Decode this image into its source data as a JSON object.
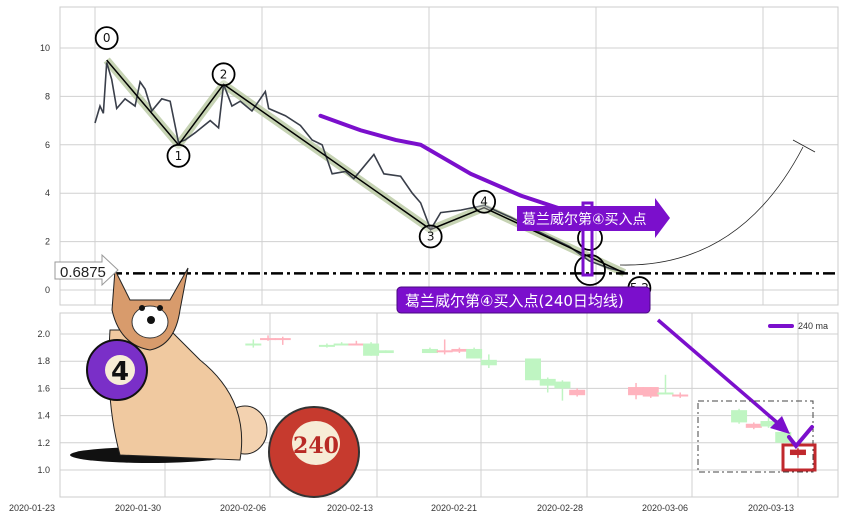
{
  "chart_data": [
    {
      "type": "line",
      "panel": "top",
      "grid": true,
      "ylim": [
        -0.6,
        11.7
      ],
      "yticks": [
        "0",
        "2",
        "4",
        "6",
        "8",
        "10"
      ],
      "xlim": [
        -21,
        445
      ],
      "price_series": [
        [
          0,
          6.9
        ],
        [
          3,
          7.6
        ],
        [
          5,
          7.3
        ],
        [
          7,
          9.4
        ],
        [
          10,
          8.7
        ],
        [
          13,
          7.5
        ],
        [
          18,
          7.9
        ],
        [
          24,
          7.6
        ],
        [
          27,
          8.6
        ],
        [
          30,
          8.3
        ],
        [
          34,
          7.4
        ],
        [
          40,
          7.9
        ],
        [
          45,
          7.8
        ],
        [
          50,
          6.1
        ],
        [
          54,
          6.2
        ],
        [
          60,
          6.5
        ],
        [
          69,
          7.0
        ],
        [
          74,
          6.7
        ],
        [
          77,
          8.5
        ],
        [
          82,
          7.6
        ],
        [
          87,
          7.8
        ],
        [
          94,
          7.4
        ],
        [
          102,
          8.2
        ],
        [
          104,
          7.5
        ],
        [
          114,
          7.2
        ],
        [
          123,
          6.8
        ],
        [
          130,
          6.2
        ],
        [
          136,
          6.0
        ],
        [
          142,
          4.8
        ],
        [
          150,
          4.9
        ],
        [
          155,
          4.6
        ],
        [
          167,
          5.6
        ],
        [
          173,
          4.8
        ],
        [
          183,
          4.7
        ],
        [
          190,
          4.0
        ],
        [
          195,
          3.6
        ],
        [
          201,
          2.5
        ],
        [
          207,
          3.2
        ],
        [
          219,
          3.3
        ],
        [
          233,
          3.5
        ],
        [
          249,
          3.0
        ],
        [
          266,
          2.4
        ],
        [
          284,
          1.8
        ],
        [
          296,
          1.2
        ],
        [
          308,
          0.9
        ],
        [
          317,
          0.75
        ]
      ],
      "ma240_series": [
        [
          135,
          7.2
        ],
        [
          159,
          6.6
        ],
        [
          180,
          6.2
        ],
        [
          195,
          6.0
        ],
        [
          210,
          5.4
        ],
        [
          225,
          4.8
        ],
        [
          255,
          3.9
        ],
        [
          290,
          3.1
        ],
        [
          302,
          2.7
        ]
      ],
      "waves": [
        {
          "label": "0",
          "x": 7,
          "y": 9.5
        },
        {
          "label": "1",
          "x": 50,
          "y": 6.0
        },
        {
          "label": "2",
          "x": 77,
          "y": 8.5
        },
        {
          "label": "3",
          "x": 201,
          "y": 2.5
        },
        {
          "label": "4",
          "x": 233,
          "y": 3.4
        },
        {
          "label": "5.2",
          "x": 317,
          "y": 0.7
        }
      ],
      "hline": {
        "value": 0.6875,
        "label": "0.6875",
        "style": "dash-dot"
      },
      "annotations": {
        "arrow_label": "葛兰威尔第④买入点",
        "box_label": "葛兰威尔第④买入点(240日均线)"
      },
      "colors": {
        "price": "#3a3f4a",
        "wave_band": "#b8c8a0",
        "ma240": "#7b0fcc",
        "annotation": "#7b0fcc"
      }
    },
    {
      "type": "candlestick",
      "panel": "bottom",
      "grid": true,
      "ylim": [
        0.8,
        2.15
      ],
      "yticks": [
        "1.0",
        "1.2",
        "1.4",
        "1.6",
        "1.8",
        "2.0"
      ],
      "xticks": [
        "2020-01-23",
        "2020-01-30",
        "2020-02-06",
        "2020-02-13",
        "2020-02-21",
        "2020-02-28",
        "2020-03-06",
        "2020-03-13"
      ],
      "legend": {
        "entries": [
          "240 ma"
        ],
        "placement": "top-right"
      },
      "candles": [
        {
          "date": "2020-02-05",
          "o": 1.93,
          "h": 1.96,
          "l": 1.9,
          "c": 1.92
        },
        {
          "date": "2020-02-06",
          "o": 1.97,
          "h": 1.99,
          "l": 1.95,
          "c": 1.97
        },
        {
          "date": "2020-02-07",
          "o": 1.96,
          "h": 1.98,
          "l": 1.92,
          "c": 1.97
        },
        {
          "date": "2020-02-10",
          "o": 1.92,
          "h": 1.93,
          "l": 1.9,
          "c": 1.91
        },
        {
          "date": "2020-02-11",
          "o": 1.93,
          "h": 1.94,
          "l": 1.92,
          "c": 1.92
        },
        {
          "date": "2020-02-12",
          "o": 1.93,
          "h": 1.95,
          "l": 1.92,
          "c": 1.93
        },
        {
          "date": "2020-02-13",
          "o": 1.93,
          "h": 1.94,
          "l": 1.84,
          "c": 1.84
        },
        {
          "date": "2020-02-14",
          "o": 1.88,
          "h": 1.88,
          "l": 1.86,
          "c": 1.86
        },
        {
          "date": "2020-02-17",
          "o": 1.89,
          "h": 1.9,
          "l": 1.86,
          "c": 1.86
        },
        {
          "date": "2020-02-18",
          "o": 1.87,
          "h": 1.96,
          "l": 1.85,
          "c": 1.88
        },
        {
          "date": "2020-02-19",
          "o": 1.87,
          "h": 1.9,
          "l": 1.86,
          "c": 1.89
        },
        {
          "date": "2020-02-20",
          "o": 1.89,
          "h": 1.9,
          "l": 1.82,
          "c": 1.82
        },
        {
          "date": "2020-02-21",
          "o": 1.81,
          "h": 1.85,
          "l": 1.75,
          "c": 1.77
        },
        {
          "date": "2020-02-24",
          "o": 1.82,
          "h": 1.82,
          "l": 1.66,
          "c": 1.66
        },
        {
          "date": "2020-02-25",
          "o": 1.67,
          "h": 1.68,
          "l": 1.57,
          "c": 1.62
        },
        {
          "date": "2020-02-26",
          "o": 1.65,
          "h": 1.66,
          "l": 1.51,
          "c": 1.6
        },
        {
          "date": "2020-02-27",
          "o": 1.55,
          "h": 1.6,
          "l": 1.54,
          "c": 1.59
        },
        {
          "date": "2020-03-02",
          "o": 1.55,
          "h": 1.64,
          "l": 1.52,
          "c": 1.61
        },
        {
          "date": "2020-03-03",
          "o": 1.54,
          "h": 1.61,
          "l": 1.53,
          "c": 1.61
        },
        {
          "date": "2020-03-04",
          "o": 1.57,
          "h": 1.7,
          "l": 1.56,
          "c": 1.56
        },
        {
          "date": "2020-03-05",
          "o": 1.55,
          "h": 1.57,
          "l": 1.53,
          "c": 1.555
        },
        {
          "date": "2020-03-09",
          "o": 1.44,
          "h": 1.45,
          "l": 1.34,
          "c": 1.35
        },
        {
          "date": "2020-03-10",
          "o": 1.31,
          "h": 1.35,
          "l": 1.3,
          "c": 1.34
        },
        {
          "date": "2020-03-11",
          "o": 1.36,
          "h": 1.4,
          "l": 1.31,
          "c": 1.32
        },
        {
          "date": "2020-03-12",
          "o": 1.28,
          "h": 1.28,
          "l": 1.0,
          "c": 1.2
        },
        {
          "date": "2020-03-13",
          "o": 1.11,
          "h": 1.16,
          "l": 1.09,
          "c": 1.15
        }
      ],
      "highlight": {
        "date": "2020-03-13",
        "color": "#c0282d"
      },
      "colors": {
        "down": "#bff5c2",
        "up": "#ffb3be",
        "ma240": "#7b0fcc"
      }
    }
  ],
  "illustration": {
    "ball_purple_label": "4",
    "ball_red_label": "240"
  }
}
